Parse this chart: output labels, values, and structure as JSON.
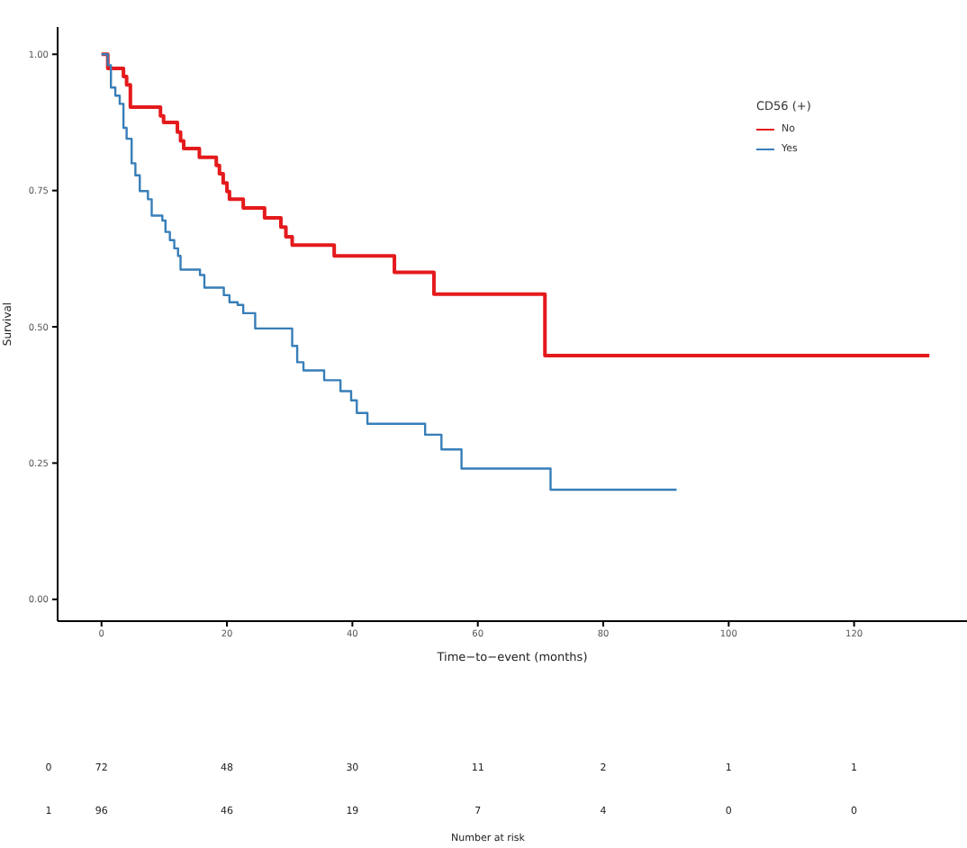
{
  "chart_data": {
    "type": "step",
    "xlabel": "Time−to−event (months)",
    "ylabel": "Survival",
    "legend_title": "CD56 (+)",
    "legend": "top right",
    "marker": "none",
    "line_style": "solid",
    "xlim": [
      -7,
      138
    ],
    "xticks": [
      0,
      20,
      40,
      60,
      80,
      100,
      120
    ],
    "ylim": [
      -0.04,
      1.05
    ],
    "yticks": [
      {
        "value": 0,
        "label": "0.00"
      },
      {
        "value": 0.25,
        "label": "0.25"
      },
      {
        "value": 0.5,
        "label": "0.50"
      },
      {
        "value": 0.75,
        "label": "0.75"
      },
      {
        "value": 1,
        "label": "1.00"
      }
    ],
    "series": [
      {
        "name": "No",
        "color": "#e41a1c",
        "x": [
          0,
          1,
          3.5,
          4,
          4.6,
          9.4,
          9.9,
          12.1,
          12.6,
          13.1,
          15.6,
          18.3,
          18.8,
          19.4,
          20,
          20.4,
          22.6,
          26,
          28.6,
          29.4,
          30.4,
          37.1,
          46.7,
          53,
          70.7,
          132
        ],
        "values": [
          1,
          0.974,
          0.959,
          0.944,
          0.903,
          0.887,
          0.875,
          0.857,
          0.841,
          0.827,
          0.811,
          0.796,
          0.781,
          0.764,
          0.748,
          0.734,
          0.718,
          0.7,
          0.683,
          0.665,
          0.65,
          0.63,
          0.6,
          0.56,
          0.447,
          0.447
        ]
      },
      {
        "name": "Yes",
        "color": "#377eb8",
        "x": [
          0,
          1,
          1.5,
          2.2,
          2.9,
          3.5,
          4,
          4.8,
          5.4,
          6.1,
          7.4,
          8,
          9.7,
          10.2,
          10.9,
          11.6,
          12.2,
          12.6,
          15.7,
          16.4,
          19.5,
          20.4,
          21.7,
          22.6,
          24.5,
          30.4,
          31.2,
          32.2,
          35.5,
          38.1,
          39.8,
          40.7,
          42.4,
          51.6,
          54.2,
          57.4,
          71.6,
          91.7
        ],
        "values": [
          1,
          0.98,
          0.939,
          0.924,
          0.909,
          0.865,
          0.845,
          0.8,
          0.778,
          0.749,
          0.734,
          0.704,
          0.695,
          0.674,
          0.659,
          0.644,
          0.63,
          0.605,
          0.595,
          0.572,
          0.558,
          0.545,
          0.54,
          0.525,
          0.497,
          0.465,
          0.435,
          0.42,
          0.402,
          0.382,
          0.365,
          0.342,
          0.322,
          0.302,
          0.275,
          0.24,
          0.201,
          0.201
        ]
      }
    ],
    "annotations": [
      "0",
      "72",
      "48",
      "30",
      "11",
      "2",
      "1",
      "1",
      "1",
      "96",
      "46",
      "19",
      "7",
      "4",
      "0",
      "0",
      "Number at risk"
    ]
  }
}
